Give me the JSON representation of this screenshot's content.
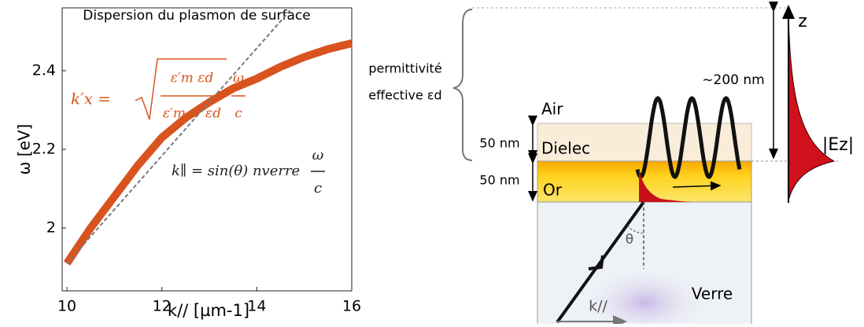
{
  "chart_data": {
    "type": "line",
    "title": "Dispersion du plasmon de surface",
    "xlabel": "k// [µm-1]",
    "ylabel": "ω [eV]",
    "xlim": [
      9.9,
      16
    ],
    "xticks": [
      10,
      12,
      14,
      16
    ],
    "ylim": [
      1.84,
      2.56
    ],
    "yticks": [
      2,
      2.2,
      2.4
    ],
    "series": [
      {
        "color": "#d9531e",
        "x": [
          10,
          10.5,
          11,
          11.5,
          12,
          12.5,
          13,
          13.5,
          14,
          14.5,
          15,
          15.5,
          16
        ],
        "values": [
          1.91,
          2.0,
          2.08,
          2.16,
          2.23,
          2.28,
          2.32,
          2.355,
          2.38,
          2.41,
          2.435,
          2.455,
          2.47
        ]
      },
      {
        "color": "#777777",
        "dashed": true,
        "x": [
          10,
          14.75
        ],
        "values": [
          1.91,
          2.56
        ]
      }
    ],
    "formula_1": {
      "lhs": "k′x =",
      "num": "ε′m εd",
      "den": "ε′m + εd",
      "w": "ω",
      "c": "c",
      "color": "#d9531e"
    },
    "formula_2": {
      "lhs": "k∥ = sin(θ) nverre",
      "w": "ω",
      "c": "c"
    }
  },
  "diagram": {
    "permittivity": "permittivité",
    "effective": "effective εd",
    "thick_1": "50 nm",
    "thick_2": "50 nm",
    "air": "Air",
    "dielec": "Dielec",
    "gold": "Or",
    "glass": "Verre",
    "decay": "~200 nm",
    "z": "z",
    "field": "|Ez|",
    "theta": "θ",
    "k": "k//"
  }
}
